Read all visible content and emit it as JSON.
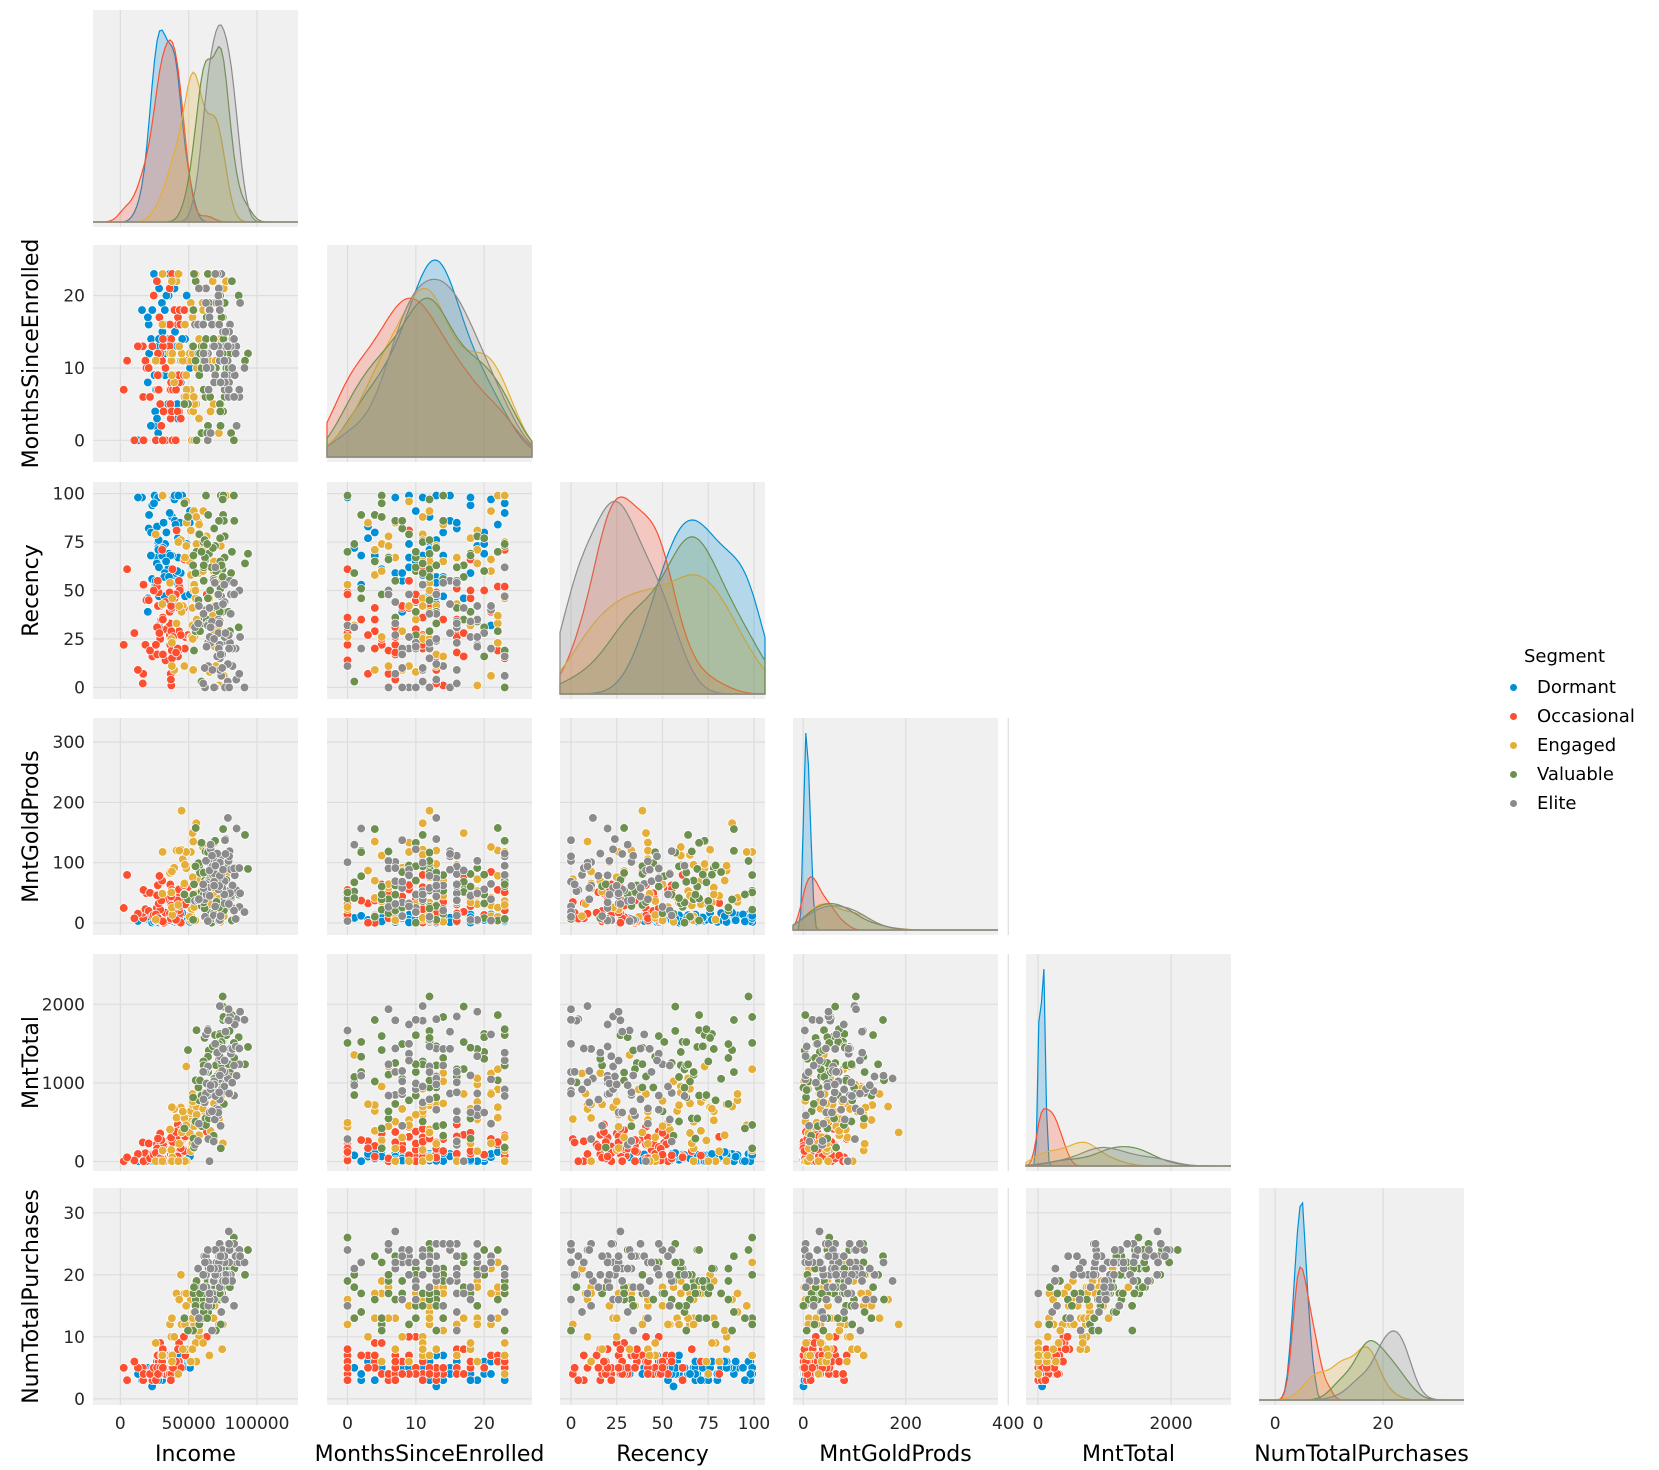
{
  "chart_data": {
    "type": "scatter",
    "kind": "pairplot-corner",
    "hue": "Segment",
    "variables": [
      "Income",
      "MonthsSinceEnrolled",
      "Recency",
      "MntGoldProds",
      "MntTotal",
      "NumTotalPurchases"
    ],
    "axes": {
      "Income": {
        "range": [
          -20000,
          130000
        ],
        "ticks": [
          0,
          50000,
          100000
        ],
        "tick_labels": [
          "0",
          "50000",
          "100000"
        ]
      },
      "MonthsSinceEnrolled": {
        "range": [
          -3,
          27
        ],
        "ticks": [
          0,
          10,
          20
        ],
        "tick_labels": [
          "0",
          "10",
          "20"
        ]
      },
      "Recency": {
        "range": [
          -6,
          106
        ],
        "ticks": [
          0,
          25,
          50,
          75,
          100
        ],
        "tick_labels": [
          "0",
          "25",
          "50",
          "75",
          "100"
        ]
      },
      "MntGoldProds": {
        "range": [
          -20,
          340
        ],
        "ticks": [
          0,
          100,
          200,
          300
        ],
        "tick_labels": [
          "0",
          "100",
          "200",
          "300"
        ],
        "x_tick_labels": [
          "0",
          "200",
          "400"
        ],
        "x_ticks": [
          0,
          200,
          400
        ],
        "x_range": [
          -20,
          380
        ]
      },
      "MntTotal": {
        "range": [
          -120,
          2640
        ],
        "ticks": [
          0,
          1000,
          2000
        ],
        "tick_labels": [
          "0",
          "1000",
          "2000"
        ],
        "x_tick_labels": [
          "0",
          "2000"
        ],
        "x_ticks": [
          0,
          2000
        ],
        "x_range": [
          -180,
          2900
        ]
      },
      "NumTotalPurchases": {
        "range": [
          -1,
          34
        ],
        "ticks": [
          0,
          10,
          20,
          30
        ],
        "tick_labels": [
          "0",
          "10",
          "20",
          "30"
        ],
        "x_tick_labels": [
          "0",
          "20"
        ],
        "x_ticks": [
          0,
          20
        ],
        "x_range": [
          -3,
          35
        ]
      }
    },
    "series": [
      {
        "name": "Dormant",
        "color": "#008fd5",
        "means": [
          33000,
          12,
          70,
          8,
          60,
          4.5
        ],
        "sds": [
          9000,
          6.5,
          20,
          8,
          40,
          1.2
        ]
      },
      {
        "name": "Occasional",
        "color": "#fc4f30",
        "means": [
          34000,
          10,
          35,
          25,
          180,
          5.5
        ],
        "sds": [
          11000,
          6.5,
          18,
          25,
          140,
          1.8
        ]
      },
      {
        "name": "Engaged",
        "color": "#e5ae38",
        "means": [
          55000,
          12,
          55,
          55,
          600,
          14
        ],
        "sds": [
          12000,
          6.5,
          28,
          45,
          350,
          4
        ]
      },
      {
        "name": "Valuable",
        "color": "#6d904f",
        "means": [
          68000,
          12,
          58,
          60,
          1250,
          18
        ],
        "sds": [
          10000,
          6.5,
          26,
          55,
          450,
          4
        ]
      },
      {
        "name": "Elite",
        "color": "#8b8b8b",
        "means": [
          75000,
          14,
          22,
          65,
          1150,
          21
        ],
        "sds": [
          9000,
          6.5,
          20,
          55,
          500,
          3.5
        ]
      }
    ],
    "legend": {
      "title": "Segment",
      "placement": "right"
    },
    "grid": true
  }
}
